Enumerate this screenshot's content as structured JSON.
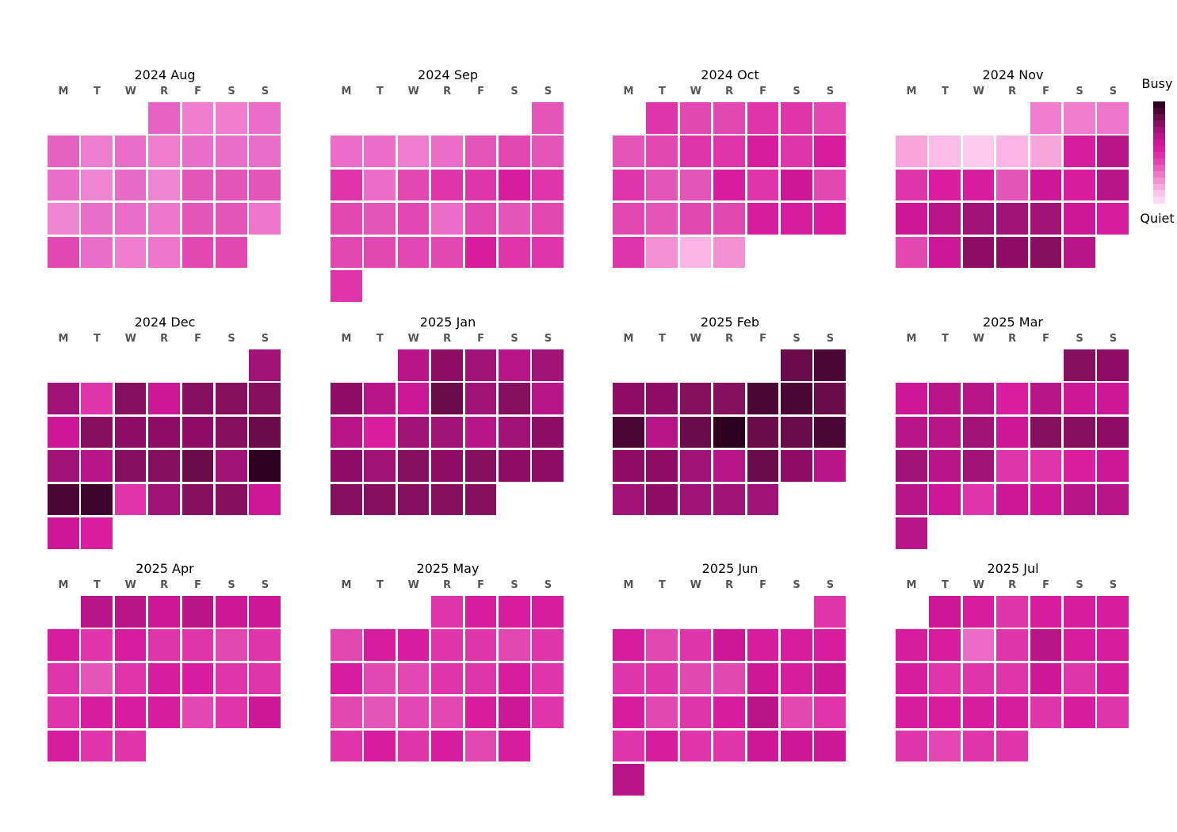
{
  "chart_data": {
    "type": "heatmap",
    "subtype": "calendar",
    "weekday_labels": [
      "M",
      "T",
      "W",
      "R",
      "F",
      "S",
      "S"
    ],
    "colorbar": {
      "top_label": "Busy",
      "bottom_label": "Quiet",
      "colors": [
        "#2d0020",
        "#4a0635",
        "#6a0c4a",
        "#861060",
        "#a01275",
        "#b81688",
        "#cc1896",
        "#db1e9f",
        "#e02fa7",
        "#e345b0",
        "#e85fba",
        "#ed77c6",
        "#f290d2",
        "#f7aade",
        "#fbc4ea",
        "#fdd8f1"
      ]
    },
    "months": [
      {
        "title": "2024 Aug",
        "start_weekday": 3,
        "days": 31,
        "colors": [
          "#e663c3",
          "#ef7ece",
          "#ef7ece",
          "#ea6dc8",
          "#e463c0",
          "#ed7ecf",
          "#e96ec8",
          "#ef7ecf",
          "#e96ec8",
          "#e96ec8",
          "#e96ec8",
          "#ea6fc8",
          "#ef85d2",
          "#e66bc4",
          "#ef85d2",
          "#e455b8",
          "#e455b8",
          "#e455b8",
          "#ef86d3",
          "#e96ec8",
          "#e96ec8",
          "#ec77cb",
          "#e455b8",
          "#e455b8",
          "#ec77cb",
          "#e247b2",
          "#ea6dc8",
          "#ef7ecf",
          "#ec77cb",
          "#e247b2",
          "#e247b2"
        ]
      },
      {
        "title": "2024 Sep",
        "start_weekday": 6,
        "days": 30,
        "colors": [
          "#e455b8",
          "#ec6ec8",
          "#ec6ec8",
          "#ef7ecf",
          "#ec6ec8",
          "#e455b8",
          "#e247b2",
          "#e455b8",
          "#e035aa",
          "#ec6ec8",
          "#e247b2",
          "#e035aa",
          "#e035aa",
          "#d81c9f",
          "#e035aa",
          "#e247b2",
          "#e455b8",
          "#e247b2",
          "#ec6ec8",
          "#e247b2",
          "#e455b8",
          "#e247b2",
          "#e247b2",
          "#e247b2",
          "#e247b2",
          "#e247b2",
          "#d81c9f",
          "#e035aa",
          "#e035aa",
          "#e035aa"
        ]
      },
      {
        "title": "2024 Oct",
        "start_weekday": 1,
        "days": 31,
        "colors": [
          "#e035aa",
          "#e247b2",
          "#e247b2",
          "#e035aa",
          "#e035aa",
          "#e247b2",
          "#e455b8",
          "#e247b2",
          "#e035aa",
          "#e035aa",
          "#d81c9f",
          "#e035aa",
          "#d81c9f",
          "#e035aa",
          "#e455b8",
          "#e455b8",
          "#d81c9f",
          "#e035aa",
          "#cc1896",
          "#e247b2",
          "#e247b2",
          "#e455b8",
          "#e247b2",
          "#e247b2",
          "#d81c9f",
          "#d81c9f",
          "#d81c9f",
          "#e035aa",
          "#f290d2",
          "#fbb4e6",
          "#f290d2"
        ]
      },
      {
        "title": "2024 Nov",
        "start_weekday": 4,
        "days": 30,
        "colors": [
          "#ef7ecf",
          "#ef7ecf",
          "#ed75ca",
          "#f7a6db",
          "#fbbce8",
          "#fdcbeb",
          "#fbb4e6",
          "#f7a6db",
          "#d81c9f",
          "#b81688",
          "#e035aa",
          "#db1e9f",
          "#d81c9f",
          "#e455b8",
          "#cc1896",
          "#d81c9f",
          "#b81688",
          "#cc1896",
          "#b81688",
          "#a01275",
          "#a01275",
          "#a01275",
          "#cc1896",
          "#d81c9f",
          "#e247b2",
          "#cc1896",
          "#8f0e65",
          "#8f0e65",
          "#861060",
          "#b81688"
        ]
      },
      {
        "title": "2024 Dec",
        "start_weekday": 6,
        "days": 31,
        "colors": [
          "#a01275",
          "#a01275",
          "#e035aa",
          "#861060",
          "#cc1896",
          "#861060",
          "#861060",
          "#861060",
          "#cc1896",
          "#861060",
          "#8f0e65",
          "#8f0e65",
          "#8f0e65",
          "#861060",
          "#6a0c4a",
          "#a01275",
          "#b81688",
          "#861060",
          "#861060",
          "#6a0c4a",
          "#a01275",
          "#2d0020",
          "#4a0635",
          "#3d042c",
          "#e035aa",
          "#a01275",
          "#861060",
          "#861060",
          "#cc1896",
          "#cc1896",
          "#db1e9f"
        ]
      },
      {
        "title": "2025 Jan",
        "start_weekday": 2,
        "days": 31,
        "colors": [
          "#b81688",
          "#8f0e65",
          "#a01275",
          "#b81688",
          "#a01275",
          "#8f0e65",
          "#b81688",
          "#cc1896",
          "#6a0c4a",
          "#a01275",
          "#861060",
          "#b81688",
          "#b81688",
          "#db1e9f",
          "#a01275",
          "#a01275",
          "#b81688",
          "#a01275",
          "#8f0e65",
          "#8f0e65",
          "#a01275",
          "#861060",
          "#8f0e65",
          "#861060",
          "#8f0e65",
          "#8f0e65",
          "#861060",
          "#861060",
          "#861060",
          "#861060",
          "#861060"
        ]
      },
      {
        "title": "2025 Feb",
        "start_weekday": 5,
        "days": 28,
        "colors": [
          "#6a0c4a",
          "#4a0635",
          "#8f0e65",
          "#8f0e65",
          "#861060",
          "#861060",
          "#4a0635",
          "#4a0635",
          "#6a0c4a",
          "#4a0635",
          "#b81688",
          "#6a0c4a",
          "#2d0020",
          "#6a0c4a",
          "#6a0c4a",
          "#4a0635",
          "#8f0e65",
          "#8f0e65",
          "#a01275",
          "#b81688",
          "#6a0c4a",
          "#8f0e65",
          "#b81688",
          "#a01275",
          "#8f0e65",
          "#a01275",
          "#a01275",
          "#a01275"
        ]
      },
      {
        "title": "2025 Mar",
        "start_weekday": 5,
        "days": 31,
        "colors": [
          "#861060",
          "#8f0e65",
          "#cc1896",
          "#b81688",
          "#b81688",
          "#db1e9f",
          "#b81688",
          "#cc1896",
          "#cc1896",
          "#b81688",
          "#b81688",
          "#a01275",
          "#cc1896",
          "#861060",
          "#861060",
          "#8f0e65",
          "#a01275",
          "#b81688",
          "#a01275",
          "#e035aa",
          "#e035aa",
          "#db1e9f",
          "#cc1896",
          "#b81688",
          "#cc1896",
          "#e035aa",
          "#cc1896",
          "#cc1896",
          "#b81688",
          "#b81688",
          "#b81688"
        ]
      },
      {
        "title": "2025 Apr",
        "start_weekday": 1,
        "days": 30,
        "colors": [
          "#b81688",
          "#b81688",
          "#cc1896",
          "#b81688",
          "#cc1896",
          "#cc1896",
          "#d81c9f",
          "#e035aa",
          "#d81c9f",
          "#e035aa",
          "#e035aa",
          "#e247b2",
          "#e035aa",
          "#e035aa",
          "#e455b8",
          "#e035aa",
          "#d81c9f",
          "#d81c9f",
          "#e035aa",
          "#e035aa",
          "#e035aa",
          "#d81c9f",
          "#d81c9f",
          "#d81c9f",
          "#e247b2",
          "#e035aa",
          "#cc1896",
          "#d81c9f",
          "#e035aa",
          "#e035aa"
        ]
      },
      {
        "title": "2025 May",
        "start_weekday": 3,
        "days": 31,
        "colors": [
          "#e035aa",
          "#d81c9f",
          "#d81c9f",
          "#d81c9f",
          "#e247b2",
          "#d81c9f",
          "#d81c9f",
          "#e035aa",
          "#e035aa",
          "#e247b2",
          "#e035aa",
          "#d81c9f",
          "#e247b2",
          "#e247b2",
          "#e035aa",
          "#e035aa",
          "#d81c9f",
          "#e035aa",
          "#e247b2",
          "#e455b8",
          "#e247b2",
          "#e247b2",
          "#d81c9f",
          "#cc1896",
          "#e035aa",
          "#e035aa",
          "#d81c9f",
          "#e035aa",
          "#d81c9f",
          "#e247b2",
          "#d81c9f"
        ]
      },
      {
        "title": "2025 Jun",
        "start_weekday": 6,
        "days": 30,
        "colors": [
          "#e035aa",
          "#d81c9f",
          "#e247b2",
          "#e035aa",
          "#cc1896",
          "#d81c9f",
          "#d81c9f",
          "#d81c9f",
          "#e035aa",
          "#e035aa",
          "#e247b2",
          "#e247b2",
          "#cc1896",
          "#d81c9f",
          "#cc1896",
          "#d81c9f",
          "#e247b2",
          "#e035aa",
          "#d81c9f",
          "#b81688",
          "#e247b2",
          "#e035aa",
          "#e035aa",
          "#d81c9f",
          "#e035aa",
          "#e035aa",
          "#cc1896",
          "#cc1896",
          "#cc1896",
          "#b81688"
        ]
      },
      {
        "title": "2025 Jul",
        "start_weekday": 1,
        "days": 31,
        "colors": [
          "#cc1896",
          "#d81c9f",
          "#e035aa",
          "#d81c9f",
          "#d81c9f",
          "#d81c9f",
          "#d81c9f",
          "#d81c9f",
          "#ea6ac6",
          "#e035aa",
          "#b81688",
          "#d81c9f",
          "#d81c9f",
          "#d81c9f",
          "#e035aa",
          "#e035aa",
          "#e035aa",
          "#cc1896",
          "#e035aa",
          "#d81c9f",
          "#d81c9f",
          "#d81c9f",
          "#d81c9f",
          "#d81c9f",
          "#e035aa",
          "#d81c9f",
          "#e035aa",
          "#e035aa",
          "#e247b2",
          "#e035aa",
          "#e035aa"
        ]
      }
    ]
  }
}
